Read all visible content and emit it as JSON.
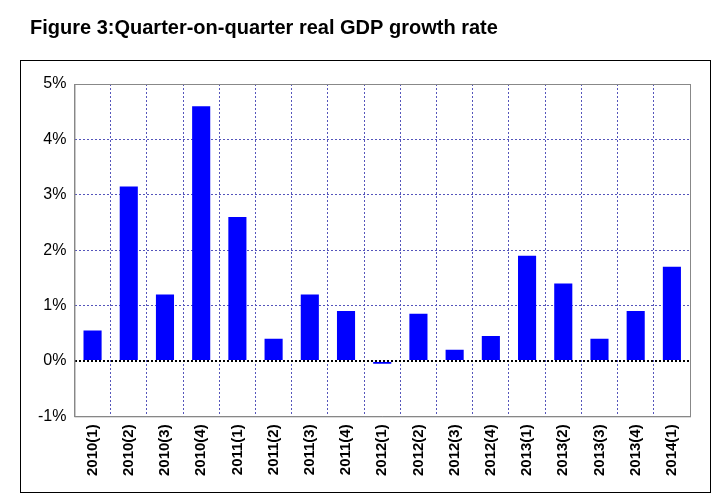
{
  "chart_data": {
    "type": "bar",
    "title": "Figure 3:Quarter-on-quarter real GDP growth rate",
    "categories": [
      "2010(1)",
      "2010(2)",
      "2010(3)",
      "2010(4)",
      "2011(1)",
      "2011(2)",
      "2011(3)",
      "2011(4)",
      "2012(1)",
      "2012(2)",
      "2012(3)",
      "2012(4)",
      "2013(1)",
      "2013(2)",
      "2013(3)",
      "2013(4)",
      "2014(1)"
    ],
    "values": [
      0.55,
      3.15,
      1.2,
      4.6,
      2.6,
      0.4,
      1.2,
      0.9,
      -0.05,
      0.85,
      0.2,
      0.45,
      1.9,
      1.4,
      0.4,
      0.9,
      1.7
    ],
    "color": "#0000ff",
    "ylim": [
      -1,
      5
    ],
    "yticks": [
      {
        "value": -1,
        "label": "-1%"
      },
      {
        "value": 0,
        "label": "0%"
      },
      {
        "value": 1,
        "label": "1%"
      },
      {
        "value": 2,
        "label": "2%"
      },
      {
        "value": 3,
        "label": "3%"
      },
      {
        "value": 4,
        "label": "4%"
      },
      {
        "value": 5,
        "label": "5%"
      }
    ],
    "grid": true
  }
}
